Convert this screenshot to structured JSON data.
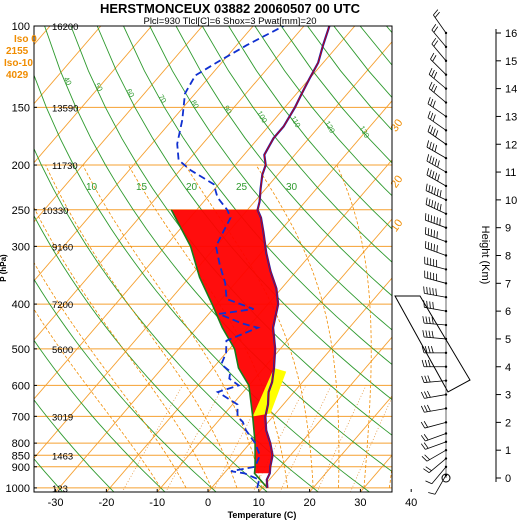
{
  "header": {
    "title": "HERSTMONCEUX 03882 20060507 00 UTC",
    "subtitle": "Plcl=930 Tlcl[C]=6 Shox=3 Pwat[mm]=20"
  },
  "info_box": {
    "iso0_label": "Iso 0",
    "iso0_value": "2155",
    "iso10_label": "Iso-10",
    "iso10_value": "4029"
  },
  "colors": {
    "isobar": "#f5a030",
    "dry_adiabat": "#2e9a2e",
    "moist_adiabat": "#f08c00",
    "mixing_ratio": "#e08a2a",
    "temperature": "#cc0000",
    "dewpoint": "#1030d0",
    "cape_fill": "#ff0000",
    "cin_fill": "#ffff00",
    "wind": "#000000"
  },
  "chart_data": {
    "type": "line",
    "title": "HERSTMONCEUX 03882 20060507 00 UTC",
    "subtitle": "Plcl=930 Tlcl[C]=6 Shox=3 Pwat[mm]=20",
    "xlabel": "Temperature (C)",
    "ylabel": "P (hPa)",
    "right_ylabel": "Height (Km)",
    "xlim": [
      -35,
      45
    ],
    "ylim": [
      1050,
      100
    ],
    "yscale": "log",
    "x_ticks": [
      "-30",
      "-20",
      "-10",
      "0",
      "10",
      "20",
      "30",
      "40"
    ],
    "y_ticks": [
      "100",
      "150",
      "200",
      "250",
      "300",
      "400",
      "500",
      "600",
      "700",
      "800",
      "850",
      "900",
      "1000"
    ],
    "height_ticks": [
      "0",
      "1",
      "2",
      "3",
      "4",
      "5",
      "6",
      "7",
      "8",
      "9",
      "10",
      "11",
      "12",
      "13",
      "14",
      "15",
      "16"
    ],
    "height_labels": [
      "16200",
      "13590",
      "11730",
      "10330",
      "9160",
      "7200",
      "5600",
      "3019",
      "1463",
      "123"
    ],
    "theta_labels": [
      "40",
      "50",
      "60",
      "70",
      "80",
      "90",
      "100",
      "110",
      "120",
      "130",
      "140",
      "150",
      "160",
      "30",
      "20",
      "10"
    ],
    "mixing_ratio_labels": [
      "10",
      "15",
      "20",
      "25",
      "30"
    ],
    "series": [
      {
        "name": "Temperature",
        "points": [
          [
            11,
            1000
          ],
          [
            9.5,
            960
          ],
          [
            9,
            930
          ],
          [
            8,
            900
          ],
          [
            6.5,
            850
          ],
          [
            4,
            800
          ],
          [
            1,
            750
          ],
          [
            -1.5,
            700
          ],
          [
            -3,
            660
          ],
          [
            -5,
            620
          ],
          [
            -6,
            590
          ],
          [
            -8,
            550
          ],
          [
            -11,
            500
          ],
          [
            -15,
            450
          ],
          [
            -18,
            400
          ],
          [
            -21,
            370
          ],
          [
            -25,
            340
          ],
          [
            -29,
            310
          ],
          [
            -33,
            280
          ],
          [
            -36,
            260
          ],
          [
            -38,
            250
          ],
          [
            -39,
            240
          ],
          [
            -41,
            225
          ],
          [
            -43,
            210
          ],
          [
            -44,
            200
          ],
          [
            -46,
            190
          ],
          [
            -47,
            175
          ],
          [
            -47,
            165
          ],
          [
            -48,
            150
          ],
          [
            -49,
            140
          ],
          [
            -50,
            130
          ],
          [
            -51,
            120
          ],
          [
            -53,
            110
          ],
          [
            -55,
            100
          ]
        ]
      },
      {
        "name": "Dewpoint",
        "points": [
          [
            9,
            1000
          ],
          [
            8,
            960
          ],
          [
            4,
            930
          ],
          [
            1,
            920
          ],
          [
            5,
            900
          ],
          [
            4,
            850
          ],
          [
            1,
            800
          ],
          [
            -3,
            750
          ],
          [
            -5,
            720
          ],
          [
            -7,
            700
          ],
          [
            -9,
            660
          ],
          [
            -15,
            620
          ],
          [
            -12,
            600
          ],
          [
            -15,
            580
          ],
          [
            -16,
            560
          ],
          [
            -19,
            540
          ],
          [
            -20,
            510
          ],
          [
            -22,
            480
          ],
          [
            -18,
            450
          ],
          [
            -22,
            440
          ],
          [
            -28,
            420
          ],
          [
            -22,
            410
          ],
          [
            -29,
            390
          ],
          [
            -32,
            360
          ],
          [
            -36,
            330
          ],
          [
            -40,
            300
          ],
          [
            -41,
            280
          ],
          [
            -42,
            260
          ],
          [
            -44,
            250
          ],
          [
            -48,
            235
          ],
          [
            -51,
            220
          ],
          [
            -58,
            205
          ],
          [
            -62,
            195
          ],
          [
            -65,
            180
          ],
          [
            -68,
            160
          ],
          [
            -72,
            140
          ],
          [
            -73,
            128
          ],
          [
            -71,
            120
          ],
          [
            -68,
            110
          ],
          [
            -64,
            100
          ]
        ]
      },
      {
        "name": "Parcel",
        "points": [
          [
            11,
            1000
          ],
          [
            6,
            930
          ],
          [
            5,
            900
          ],
          [
            1,
            800
          ],
          [
            -4,
            700
          ],
          [
            -10,
            600
          ],
          [
            -15,
            550
          ],
          [
            -19,
            500
          ],
          [
            -25,
            450
          ],
          [
            -31,
            400
          ],
          [
            -38,
            350
          ],
          [
            -45,
            300
          ],
          [
            -55,
            250
          ]
        ]
      }
    ],
    "winds": [
      {
        "z": 0.1,
        "dir": 210,
        "kt": 5
      },
      {
        "z": 0.4,
        "dir": 220,
        "kt": 10
      },
      {
        "z": 0.7,
        "dir": 230,
        "kt": 15
      },
      {
        "z": 1.0,
        "dir": 240,
        "kt": 15
      },
      {
        "z": 1.3,
        "dir": 250,
        "kt": 20
      },
      {
        "z": 1.6,
        "dir": 250,
        "kt": 20
      },
      {
        "z": 2.0,
        "dir": 255,
        "kt": 20
      },
      {
        "z": 2.5,
        "dir": 260,
        "kt": 25
      },
      {
        "z": 3.0,
        "dir": 260,
        "kt": 25
      },
      {
        "z": 3.5,
        "dir": 265,
        "kt": 30
      },
      {
        "z": 4.0,
        "dir": 270,
        "kt": 30
      },
      {
        "z": 4.5,
        "dir": 270,
        "kt": 35
      },
      {
        "z": 5.0,
        "dir": 275,
        "kt": 35
      },
      {
        "z": 5.5,
        "dir": 275,
        "kt": 40
      },
      {
        "z": 6.0,
        "dir": 280,
        "kt": 40
      },
      {
        "z": 6.5,
        "dir": 280,
        "kt": 45
      },
      {
        "z": 7.0,
        "dir": 285,
        "kt": 45
      },
      {
        "z": 7.5,
        "dir": 285,
        "kt": 50
      },
      {
        "z": 8.0,
        "dir": 290,
        "kt": 50
      },
      {
        "z": 8.5,
        "dir": 290,
        "kt": 50
      },
      {
        "z": 9.0,
        "dir": 290,
        "kt": 55
      },
      {
        "z": 9.5,
        "dir": 295,
        "kt": 55
      },
      {
        "z": 10.0,
        "dir": 295,
        "kt": 55
      },
      {
        "z": 10.5,
        "dir": 300,
        "kt": 50
      },
      {
        "z": 11.0,
        "dir": 300,
        "kt": 45
      },
      {
        "z": 11.5,
        "dir": 300,
        "kt": 40
      },
      {
        "z": 12.0,
        "dir": 305,
        "kt": 35
      },
      {
        "z": 12.5,
        "dir": 305,
        "kt": 30
      },
      {
        "z": 13.0,
        "dir": 305,
        "kt": 30
      },
      {
        "z": 13.5,
        "dir": 310,
        "kt": 25
      },
      {
        "z": 14.0,
        "dir": 310,
        "kt": 25
      },
      {
        "z": 14.5,
        "dir": 315,
        "kt": 20
      },
      {
        "z": 15.0,
        "dir": 320,
        "kt": 20
      },
      {
        "z": 15.5,
        "dir": 320,
        "kt": 15
      },
      {
        "z": 16.0,
        "dir": 325,
        "kt": 15
      }
    ],
    "grid": true,
    "legend": "none"
  }
}
